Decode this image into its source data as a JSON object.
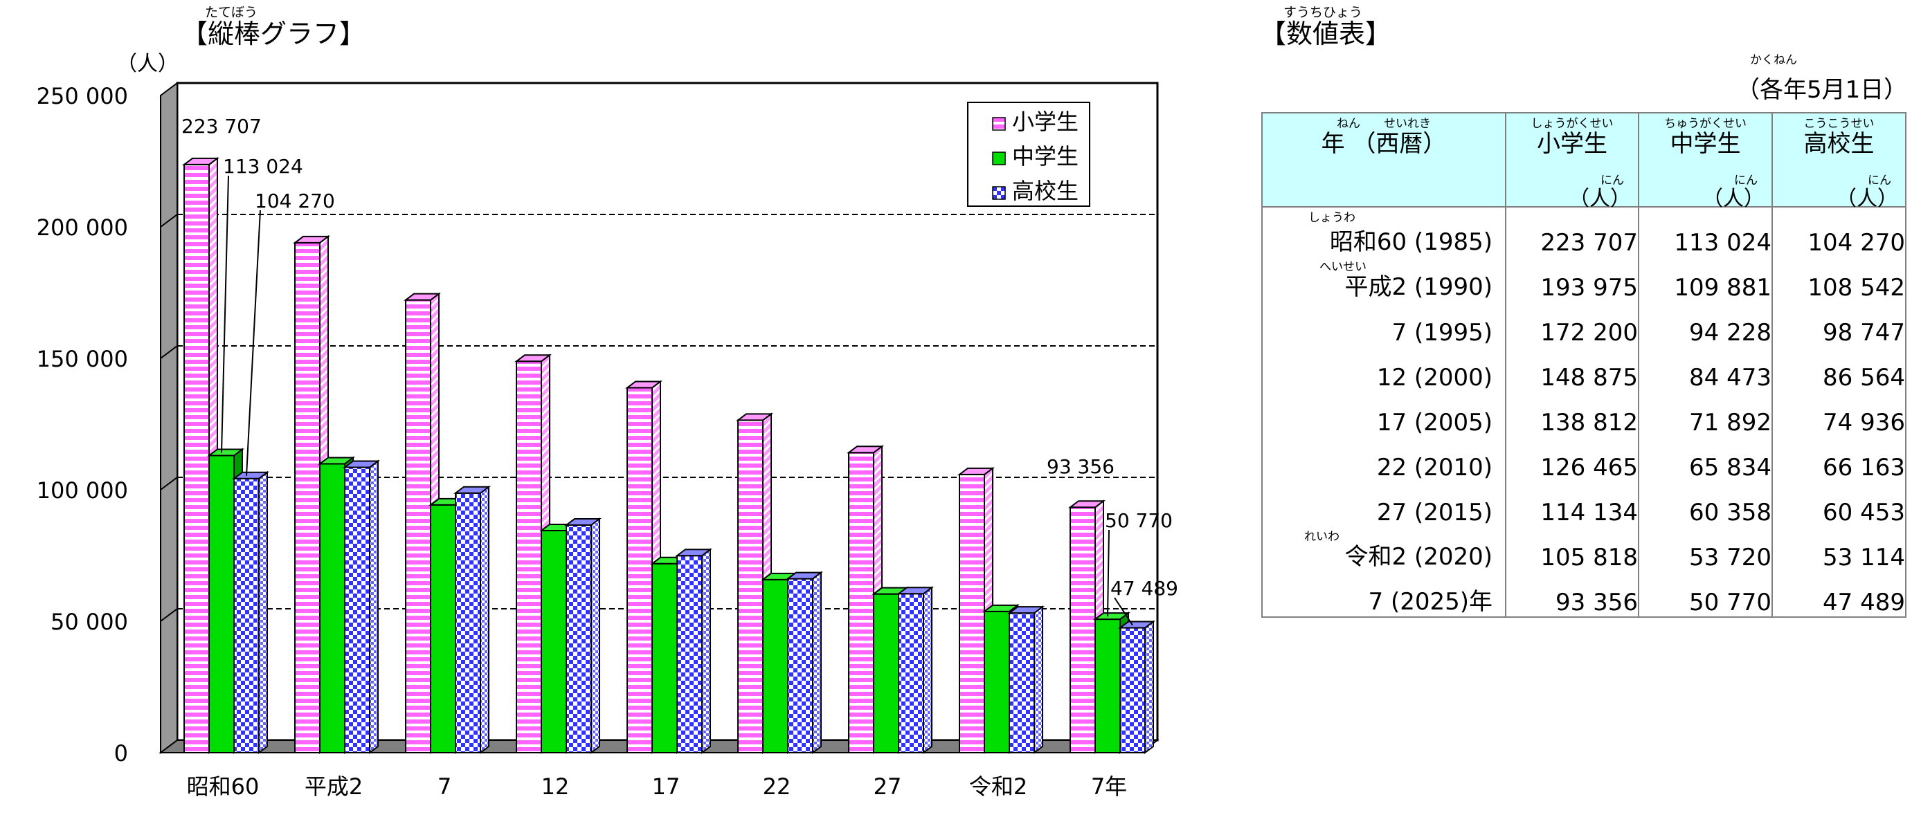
{
  "chart": {
    "title_ruby": "たてぼう",
    "title": "【縦棒グラフ】",
    "y_unit": "（人）"
  },
  "table": {
    "title_ruby": "すうちひょう",
    "title": "【数値表】",
    "date_ruby": "かくねん",
    "date_note": "（各年5月1日）",
    "headers": [
      {
        "ruby": "ねん　　せいれき",
        "label": "年 （西暦）",
        "unit_ruby": "",
        "unit": ""
      },
      {
        "ruby": "しょうがくせい",
        "label": "小学生",
        "unit_ruby": "にん",
        "unit": "（人）"
      },
      {
        "ruby": "ちゅうがくせい",
        "label": "中学生",
        "unit_ruby": "にん",
        "unit": "（人）"
      },
      {
        "ruby": "こうこうせい",
        "label": "高校生",
        "unit_ruby": "にん",
        "unit": "（人）"
      }
    ],
    "rows": [
      {
        "ruby": "しょうわ",
        "year": "昭和60 (1985)",
        "elem": "223 707",
        "mid": "113 024",
        "high": "104 270"
      },
      {
        "ruby": "へいせい",
        "year": "平成2 (1990)",
        "elem": "193 975",
        "mid": "109 881",
        "high": "108 542"
      },
      {
        "ruby": "",
        "year": "7 (1995)",
        "elem": "172 200",
        "mid": "94 228",
        "high": "98 747"
      },
      {
        "ruby": "",
        "year": "12 (2000)",
        "elem": "148 875",
        "mid": "84 473",
        "high": "86 564"
      },
      {
        "ruby": "",
        "year": "17 (2005)",
        "elem": "138 812",
        "mid": "71 892",
        "high": "74 936"
      },
      {
        "ruby": "",
        "year": "22 (2010)",
        "elem": "126 465",
        "mid": "65 834",
        "high": "66 163"
      },
      {
        "ruby": "",
        "year": "27 (2015)",
        "elem": "114 134",
        "mid": "60 358",
        "high": "60 453"
      },
      {
        "ruby": "れいわ",
        "year": "令和2 (2020)",
        "elem": "105 818",
        "mid": "53 720",
        "high": "53 114"
      },
      {
        "ruby": "",
        "year": "7 (2025)年",
        "elem": "93 356",
        "mid": "50 770",
        "high": "47 489"
      }
    ]
  },
  "chart_data": {
    "type": "bar",
    "categories": [
      "昭和60",
      "平成2",
      "7",
      "12",
      "17",
      "22",
      "27",
      "令和2",
      "7年"
    ],
    "series": [
      {
        "name": "小学生",
        "values": [
          223707,
          193975,
          172200,
          148875,
          138812,
          126465,
          114134,
          105818,
          93356
        ],
        "color": "#ff66ff"
      },
      {
        "name": "中学生",
        "values": [
          113024,
          109881,
          94228,
          84473,
          71892,
          65834,
          60358,
          53720,
          50770
        ],
        "color": "#00dd00"
      },
      {
        "name": "高校生",
        "values": [
          104270,
          108542,
          98747,
          86564,
          74936,
          66163,
          60453,
          53114,
          47489
        ],
        "color": "#3333ff"
      }
    ],
    "ylim": [
      0,
      250000
    ],
    "yticks": [
      0,
      50000,
      100000,
      150000,
      200000,
      250000
    ],
    "ytick_labels": [
      "0",
      "50 000",
      "100 000",
      "150 000",
      "200 000",
      "250 000"
    ],
    "grid": true,
    "legend": "top-right",
    "annotations": [
      {
        "text": "223 707",
        "category": "昭和60",
        "series": "小学生"
      },
      {
        "text": "113 024",
        "category": "昭和60",
        "series": "中学生"
      },
      {
        "text": "104 270",
        "category": "昭和60",
        "series": "高校生"
      },
      {
        "text": "93 356",
        "category": "7年",
        "series": "小学生"
      },
      {
        "text": "50 770",
        "category": "7年",
        "series": "中学生"
      },
      {
        "text": "47 489",
        "category": "7年",
        "series": "高校生"
      }
    ]
  }
}
